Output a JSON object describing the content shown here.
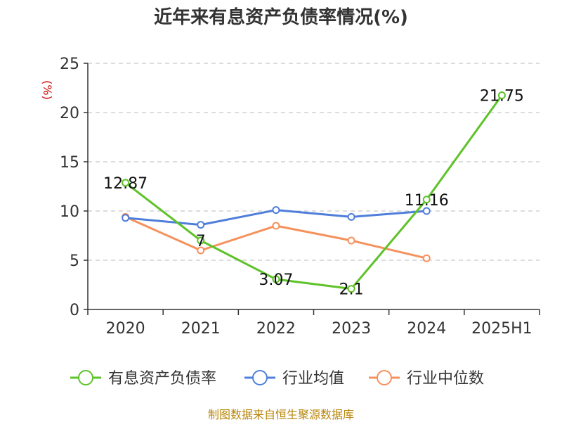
{
  "chart_data": {
    "type": "line",
    "title": "近年来有息资产负债率情况(%)",
    "ylabel": "(%)",
    "categories": [
      "2020",
      "2021",
      "2022",
      "2023",
      "2024",
      "2025H1"
    ],
    "ylim": [
      0,
      25
    ],
    "yticks": [
      "0",
      "5",
      "10",
      "15",
      "20",
      "25"
    ],
    "grid": true,
    "legend_position": "bottom",
    "series": [
      {
        "name": "有息资产负债率",
        "color": "#5ec229",
        "values": [
          12.87,
          7,
          3.07,
          2.1,
          11.16,
          21.75
        ],
        "labels": [
          "12.87",
          "7",
          "3.07",
          "2.1",
          "11.16",
          "21.75"
        ]
      },
      {
        "name": "行业均值",
        "color": "#4f7fdb",
        "values": [
          9.3,
          8.6,
          10.1,
          9.4,
          10.0,
          null
        ]
      },
      {
        "name": "行业中位数",
        "color": "#f5915c",
        "values": [
          9.4,
          6.0,
          8.5,
          7.0,
          5.2,
          null
        ]
      }
    ],
    "source": "制图数据来自恒生聚源数据库"
  }
}
